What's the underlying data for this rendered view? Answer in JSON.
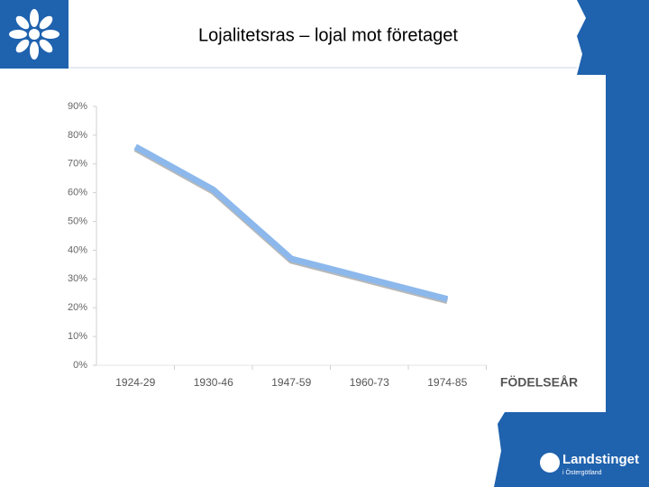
{
  "chart_data": {
    "type": "line",
    "title": "Lojalitetsras – lojal mot företaget",
    "x_label": "FÖDELSEÅR",
    "categories": [
      "1924-29",
      "1930-46",
      "1947-59",
      "1960-73",
      "1974-85"
    ],
    "values": [
      76,
      61,
      37,
      30,
      23
    ],
    "color": "#8cb8ec",
    "ylim": [
      0,
      90
    ],
    "yticks": [
      {
        "value": 0,
        "label": "0%"
      },
      {
        "value": 10,
        "label": "10%"
      },
      {
        "value": 20,
        "label": "20%"
      },
      {
        "value": 30,
        "label": "30%"
      },
      {
        "value": 40,
        "label": "40%"
      },
      {
        "value": 50,
        "label": "50%"
      },
      {
        "value": 60,
        "label": "60%"
      },
      {
        "value": 70,
        "label": "70%"
      },
      {
        "value": 80,
        "label": "80%"
      },
      {
        "value": 90,
        "label": "90%"
      }
    ]
  },
  "logo": {
    "name": "Landstinget",
    "region": "i Östergötland"
  }
}
